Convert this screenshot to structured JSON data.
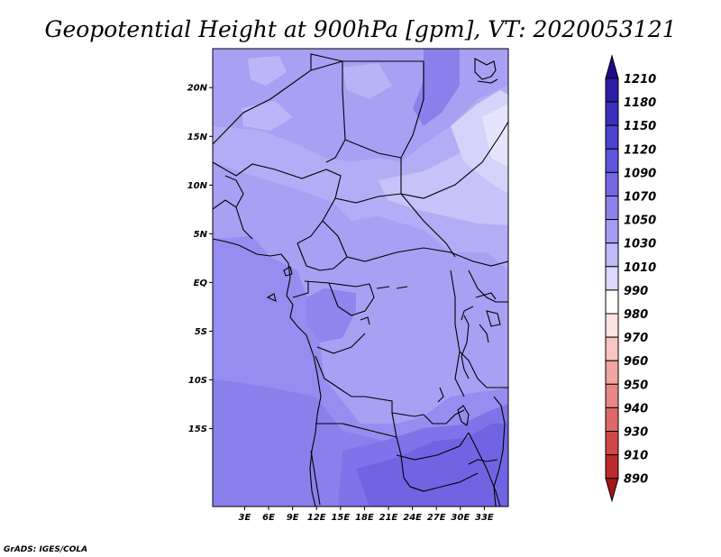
{
  "chart_data": {
    "type": "heatmap",
    "title": "Geopotential Height at 900hPa [gpm], VT: 2020053121",
    "credit": "GrADS: IGES/COLA",
    "lon_range": [
      -1,
      36
    ],
    "lat_range": [
      -23,
      24
    ],
    "x_ticks": [
      "3E",
      "6E",
      "9E",
      "12E",
      "15E",
      "18E",
      "21E",
      "24E",
      "27E",
      "30E",
      "33E"
    ],
    "y_ticks": [
      "20N",
      "15N",
      "10N",
      "5N",
      "EQ",
      "5S",
      "10S",
      "15S"
    ],
    "colorbar": {
      "levels": [
        1210,
        1180,
        1150,
        1120,
        1090,
        1070,
        1050,
        1030,
        1010,
        990,
        980,
        970,
        960,
        950,
        940,
        930,
        910,
        890
      ],
      "colors": [
        "#1e0a8c",
        "#2c1fa6",
        "#3b2fbe",
        "#4b42cf",
        "#5d55dc",
        "#7468e4",
        "#8c82ec",
        "#a59df3",
        "#bfb9f8",
        "#dcd9fb",
        "#ffffff",
        "#fde3e1",
        "#f8c5c2",
        "#f1a5a2",
        "#e88785",
        "#de6966",
        "#d04846",
        "#bb2a29",
        "#a11715"
      ]
    }
  }
}
